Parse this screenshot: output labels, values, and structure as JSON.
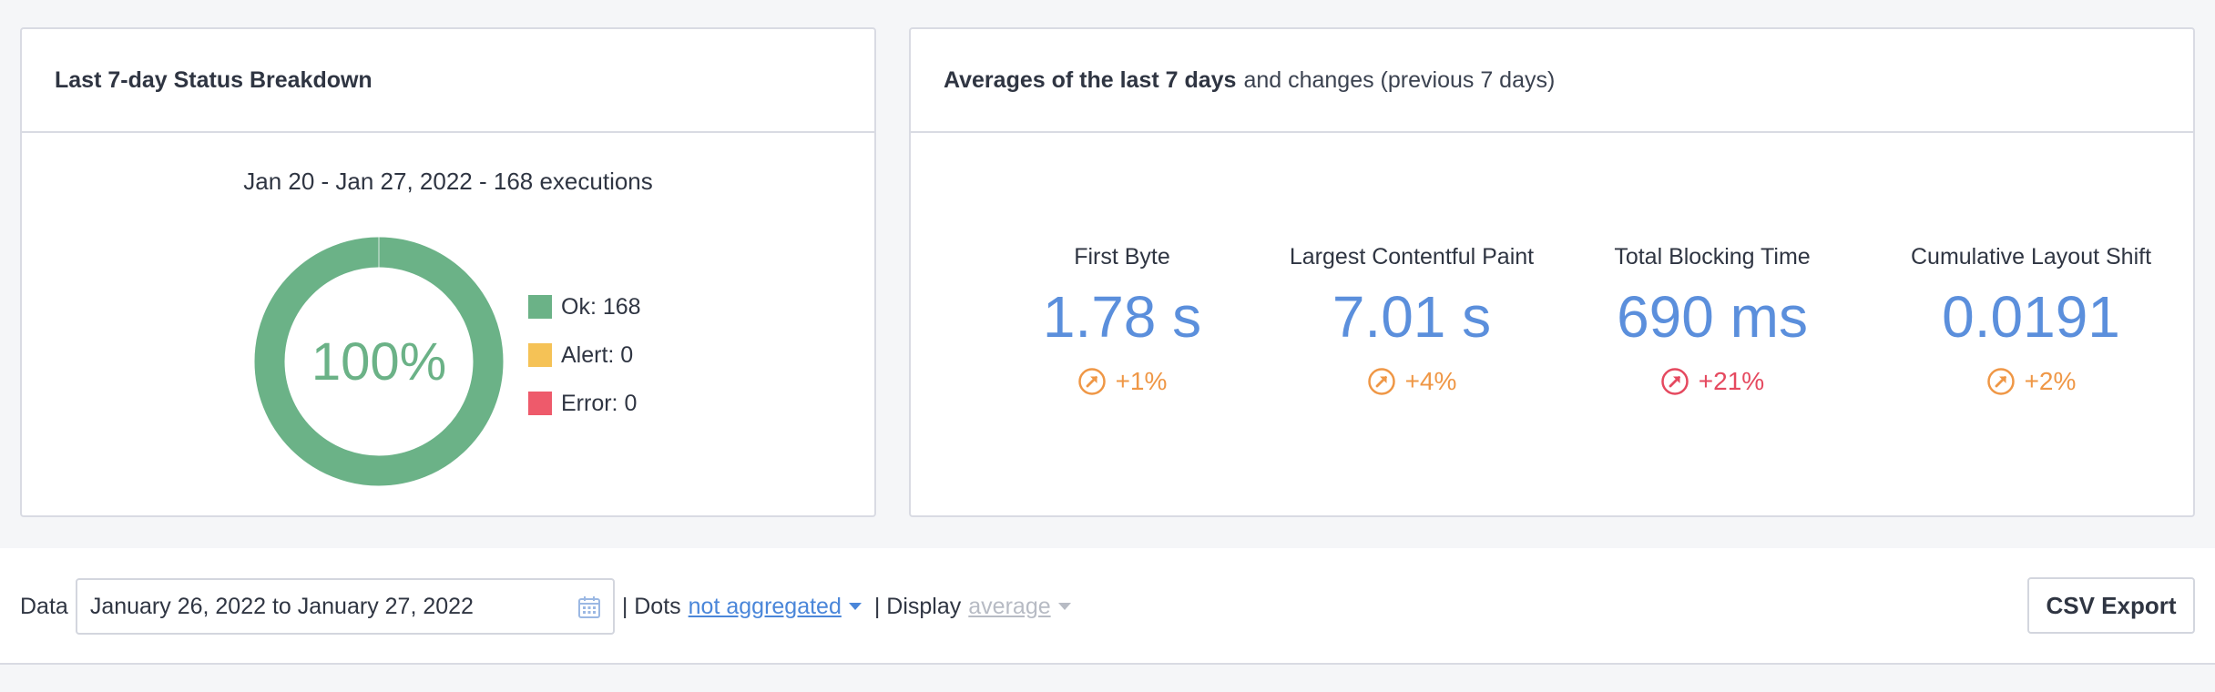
{
  "status_card": {
    "title": "Last 7-day Status Breakdown",
    "range": "Jan 20 - Jan 27, 2022 - 168 executions",
    "percent": "100%",
    "ok_fraction": 1.0,
    "legend": [
      {
        "label": "Ok: 168",
        "color": "#6bb287"
      },
      {
        "label": "Alert: 0",
        "color": "#f5c256"
      },
      {
        "label": "Error: 0",
        "color": "#ee5a6b"
      }
    ]
  },
  "averages_card": {
    "title_bold": "Averages of the last 7 days",
    "title_light": "and changes (previous 7 days)",
    "metrics": [
      {
        "label": "First Byte",
        "value": "1.78 s",
        "change": "+1%",
        "color": "#ef9746",
        "icon": "arrow-up-right-circle-icon"
      },
      {
        "label": "Largest Contentful Paint",
        "value": "7.01 s",
        "change": "+4%",
        "color": "#ef9746",
        "icon": "arrow-up-right-circle-icon"
      },
      {
        "label": "Total Blocking Time",
        "value": "690 ms",
        "change": "+21%",
        "color": "#e5495f",
        "icon": "arrow-up-right-circle-icon"
      },
      {
        "label": "Cumulative Layout Shift",
        "value": "0.0191",
        "change": "+2%",
        "color": "#ef9746",
        "icon": "arrow-up-right-circle-icon"
      }
    ]
  },
  "toolbar": {
    "data_label": "Data",
    "date_range": "January 26, 2022 to January 27, 2022",
    "dots_label": "| Dots",
    "dots_value": "not aggregated",
    "display_label": "| Display",
    "display_value": "average",
    "csv_label": "CSV Export"
  }
}
